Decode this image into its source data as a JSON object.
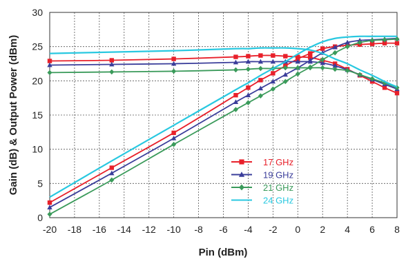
{
  "chart_data": {
    "type": "line",
    "xlabel": "Pin (dBm)",
    "ylabel": "Gain (dB) & Output Power (dBm)",
    "xlim": [
      -20,
      8
    ],
    "ylim": [
      0,
      30
    ],
    "x_ticks": [
      -20,
      -18,
      -16,
      -14,
      -12,
      -10,
      -8,
      -6,
      -4,
      -2,
      0,
      2,
      4,
      6,
      8
    ],
    "y_ticks": [
      0,
      5,
      10,
      15,
      20,
      25,
      30
    ],
    "grid": true,
    "legend_position": "lower-center",
    "series": [
      {
        "name": "17 GHz",
        "color": "#e8202a",
        "marker": "square",
        "gain": {
          "x": [
            -20,
            -15,
            -10,
            -5,
            -4,
            -3,
            -2,
            -1,
            0,
            1,
            2,
            3,
            4,
            5,
            6,
            7,
            8
          ],
          "y": [
            22.9,
            23.0,
            23.2,
            23.5,
            23.6,
            23.7,
            23.7,
            23.6,
            23.5,
            23.4,
            23.0,
            22.5,
            21.7,
            20.8,
            19.9,
            19.0,
            18.2
          ]
        },
        "pout": {
          "x": [
            -20,
            -15,
            -10,
            -5,
            -4,
            -3,
            -2,
            -1,
            0,
            1,
            2,
            3,
            4,
            5,
            6,
            7,
            8
          ],
          "y": [
            2.2,
            7.3,
            12.4,
            17.9,
            19.0,
            20.1,
            21.1,
            22.2,
            23.2,
            24.0,
            24.7,
            25.0,
            25.2,
            25.3,
            25.4,
            25.5,
            25.5
          ]
        }
      },
      {
        "name": "19 GHz",
        "color": "#3a3d9a",
        "marker": "triangle",
        "gain": {
          "x": [
            -20,
            -15,
            -10,
            -5,
            -4,
            -3,
            -2,
            -1,
            0,
            1,
            2,
            3,
            4,
            5,
            6,
            7,
            8
          ],
          "y": [
            22.3,
            22.4,
            22.5,
            22.7,
            22.8,
            22.8,
            22.8,
            22.8,
            22.8,
            22.8,
            22.6,
            22.2,
            21.6,
            20.9,
            20.2,
            19.5,
            18.8
          ]
        },
        "pout": {
          "x": [
            -20,
            -15,
            -10,
            -5,
            -4,
            -3,
            -2,
            -1,
            0,
            1,
            2,
            3,
            4,
            5,
            6,
            7,
            8
          ],
          "y": [
            1.5,
            6.5,
            11.6,
            16.9,
            17.9,
            18.9,
            19.9,
            20.9,
            21.9,
            23.0,
            24.1,
            24.9,
            25.6,
            25.9,
            26.0,
            26.1,
            26.2
          ]
        }
      },
      {
        "name": "21 GHz",
        "color": "#3a9a5a",
        "marker": "diamond",
        "gain": {
          "x": [
            -20,
            -15,
            -10,
            -5,
            -4,
            -3,
            -2,
            -1,
            0,
            1,
            2,
            3,
            4,
            5,
            6,
            7,
            8
          ],
          "y": [
            21.2,
            21.3,
            21.4,
            21.6,
            21.7,
            21.8,
            21.8,
            21.9,
            21.9,
            21.9,
            21.9,
            21.7,
            21.5,
            20.9,
            20.3,
            19.7,
            19.0
          ]
        },
        "pout": {
          "x": [
            -20,
            -15,
            -10,
            -5,
            -4,
            -3,
            -2,
            -1,
            0,
            1,
            2,
            3,
            4,
            5,
            6,
            7,
            8
          ],
          "y": [
            0.5,
            5.5,
            10.7,
            15.8,
            16.8,
            17.8,
            18.8,
            19.9,
            21.0,
            22.0,
            23.1,
            24.1,
            25.0,
            25.6,
            25.9,
            26.0,
            26.1
          ]
        }
      },
      {
        "name": "24 GHz",
        "color": "#28c8e0",
        "marker": "none",
        "gain": {
          "x": [
            -20,
            -15,
            -10,
            -5,
            -4,
            -3,
            -2,
            -1,
            0,
            1,
            2,
            3,
            4,
            5,
            6,
            7,
            8
          ],
          "y": [
            24.0,
            24.2,
            24.4,
            24.7,
            24.7,
            24.8,
            24.8,
            24.8,
            24.7,
            24.5,
            24.0,
            23.2,
            22.5,
            21.6,
            20.8,
            19.9,
            19.1
          ]
        },
        "pout": {
          "x": [
            -20,
            -15,
            -10,
            -5,
            -4,
            -3,
            -2,
            -1,
            0,
            1,
            2,
            3,
            4,
            5,
            6,
            7,
            8
          ],
          "y": [
            3.0,
            8.3,
            13.5,
            18.7,
            19.7,
            20.8,
            21.8,
            22.8,
            23.9,
            24.9,
            25.7,
            26.2,
            26.4,
            26.5,
            26.5,
            26.5,
            26.5
          ]
        }
      }
    ]
  }
}
